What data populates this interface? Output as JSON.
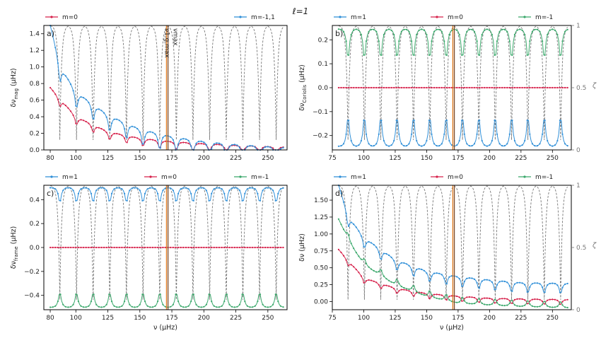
{
  "figure": {
    "title": "ℓ=1"
  },
  "chart_data": [
    {
      "panel_label": "a)",
      "type": "line",
      "ylabel_main": "δν",
      "ylabel_sub": "mag",
      "ylabel_unit": "(µHz)",
      "xlabel": "",
      "xlim": [
        75,
        265
      ],
      "ylim": [
        0,
        1.5
      ],
      "xticks": [
        80,
        100,
        125,
        150,
        175,
        200,
        225,
        250
      ],
      "yticks": [
        0.0,
        0.2,
        0.4,
        0.6,
        0.8,
        1.0,
        1.2,
        1.4
      ],
      "ytick_labels": [
        "0.0",
        "0.2",
        "0.4",
        "0.6",
        "0.8",
        "1.0",
        "1.2",
        "1.4"
      ],
      "has_zeta_axis": false,
      "vline_labels": [
        "ν1,g,max",
        "νmax"
      ],
      "legend": [
        "m=0",
        "m=-1,1"
      ],
      "series": [
        {
          "name": "m=0",
          "color": "#d6204a",
          "base": [
            [
              80,
              0.75
            ],
            [
              100,
              0.4
            ],
            [
              125,
              0.22
            ],
            [
              150,
              0.14
            ],
            [
              175,
              0.1
            ],
            [
              200,
              0.075
            ],
            [
              225,
              0.055
            ],
            [
              260,
              0.035
            ]
          ],
          "dip": 0.12
        },
        {
          "name": "m=-1,1",
          "color": "#2f8fd8",
          "base": [
            [
              80,
              1.5
            ],
            [
              88,
              1.0
            ],
            [
              100,
              0.7
            ],
            [
              125,
              0.42
            ],
            [
              150,
              0.25
            ],
            [
              175,
              0.16
            ],
            [
              200,
              0.1
            ],
            [
              225,
              0.065
            ],
            [
              260,
              0.03
            ]
          ],
          "dip": 0.25
        }
      ],
      "zeta": false
    },
    {
      "panel_label": "b)",
      "type": "line",
      "ylabel_main": "δν",
      "ylabel_sub": "Coriolis",
      "ylabel_unit": "(µHz)",
      "xlabel": "",
      "xlim": [
        75,
        265
      ],
      "ylim": [
        -0.26,
        0.26
      ],
      "xticks": [
        75,
        100,
        125,
        150,
        175,
        200,
        225,
        250
      ],
      "yticks": [
        -0.2,
        -0.1,
        0.0,
        0.1,
        0.2
      ],
      "ytick_labels": [
        "−0.2",
        "−0.1",
        "0.0",
        "0.1",
        "0.2"
      ],
      "has_zeta_axis": true,
      "zeta_label": "ζ",
      "zeta_ticks": [
        "0",
        "0.5",
        "1"
      ],
      "legend": [
        "m=1",
        "m=0",
        "m=-1"
      ],
      "series": [
        {
          "name": "m=1",
          "color": "#2f8fd8",
          "base": [
            [
              80,
              -0.245
            ],
            [
              260,
              -0.245
            ]
          ],
          "dip": -0.16
        },
        {
          "name": "m=0",
          "color": "#d6204a",
          "base": [
            [
              80,
              0.0
            ],
            [
              260,
              0.0
            ]
          ],
          "dip": 0
        },
        {
          "name": "m=-1",
          "color": "#3aa86b",
          "base": [
            [
              80,
              0.245
            ],
            [
              260,
              0.245
            ]
          ],
          "dip": 0.16
        }
      ],
      "zeta": true
    },
    {
      "panel_label": "c)",
      "type": "line",
      "ylabel_main": "δν",
      "ylabel_sub": "frame",
      "ylabel_unit": "(µHz)",
      "xlabel": "ν (µHz)",
      "xlim": [
        75,
        265
      ],
      "ylim": [
        -0.52,
        0.52
      ],
      "xticks": [
        80,
        100,
        125,
        150,
        175,
        200,
        225,
        250
      ],
      "yticks": [
        -0.4,
        -0.2,
        0.0,
        0.2,
        0.4
      ],
      "ytick_labels": [
        "−0.4",
        "−0.2",
        "0.0",
        "0.2",
        "0.4"
      ],
      "has_zeta_axis": false,
      "legend": [
        "m=1",
        "m=0",
        "m=-1"
      ],
      "series": [
        {
          "name": "m=1",
          "color": "#2f8fd8",
          "base": [
            [
              80,
              0.5
            ],
            [
              260,
              0.5
            ]
          ],
          "dip": 0.16
        },
        {
          "name": "m=0",
          "color": "#d6204a",
          "base": [
            [
              80,
              0.0
            ],
            [
              260,
              0.0
            ]
          ],
          "dip": 0
        },
        {
          "name": "m=-1",
          "color": "#3aa86b",
          "base": [
            [
              80,
              -0.5
            ],
            [
              260,
              -0.5
            ]
          ],
          "dip": -0.16
        }
      ],
      "zeta": true
    },
    {
      "panel_label": "d)",
      "type": "line",
      "ylabel_main": "δν",
      "ylabel_sub": "",
      "ylabel_unit": "(µHz)",
      "xlabel": "ν (µHz)",
      "xlim": [
        75,
        265
      ],
      "ylim": [
        -0.12,
        1.72
      ],
      "xticks": [
        75,
        100,
        125,
        150,
        175,
        200,
        225,
        250
      ],
      "yticks": [
        0.0,
        0.25,
        0.5,
        0.75,
        1.0,
        1.25,
        1.5
      ],
      "ytick_labels": [
        "0.00",
        "0.25",
        "0.50",
        "0.75",
        "1.00",
        "1.25",
        "1.50"
      ],
      "has_zeta_axis": true,
      "zeta_label": "ζ",
      "zeta_ticks": [
        "0",
        "0.5",
        "1"
      ],
      "legend": [
        "m=1",
        "m=0",
        "m=-1"
      ],
      "series": [
        {
          "name": "m=1",
          "color": "#2f8fd8",
          "base": [
            [
              80,
              1.72
            ],
            [
              88,
              1.25
            ],
            [
              100,
              0.95
            ],
            [
              125,
              0.62
            ],
            [
              150,
              0.45
            ],
            [
              175,
              0.37
            ],
            [
              200,
              0.32
            ],
            [
              225,
              0.28
            ],
            [
              260,
              0.27
            ]
          ],
          "dip": 0.2
        },
        {
          "name": "m=0",
          "color": "#d6204a",
          "base": [
            [
              80,
              0.77
            ],
            [
              100,
              0.35
            ],
            [
              125,
              0.2
            ],
            [
              150,
              0.12
            ],
            [
              175,
              0.08
            ],
            [
              200,
              0.05
            ],
            [
              225,
              0.04
            ],
            [
              260,
              0.03
            ]
          ],
          "dip": 0.1
        },
        {
          "name": "m=-1",
          "color": "#3aa86b",
          "base": [
            [
              80,
              1.22
            ],
            [
              88,
              0.9
            ],
            [
              100,
              0.55
            ],
            [
              125,
              0.25
            ],
            [
              150,
              0.08
            ],
            [
              175,
              -0.02
            ],
            [
              200,
              -0.05
            ],
            [
              225,
              -0.07
            ],
            [
              260,
              -0.09
            ]
          ],
          "dip": -0.12
        }
      ],
      "zeta": true
    }
  ],
  "dips": [
    87.5,
    100.5,
    113.5,
    126.5,
    139.5,
    152.5,
    165.5,
    178.5,
    191.5,
    204.5,
    217.5,
    230.5,
    243.5,
    256.5
  ],
  "vlines": [
    {
      "x": 170.8,
      "color": "#e07a1e"
    },
    {
      "x": 172.0,
      "color": "#7a4a2a"
    }
  ],
  "zeta_color": "#777777"
}
